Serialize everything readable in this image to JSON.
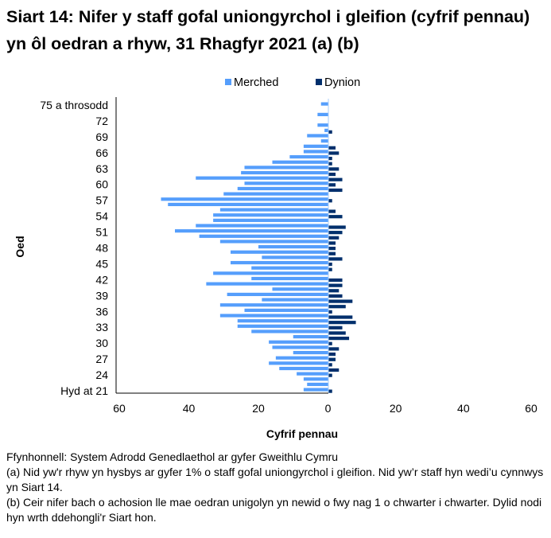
{
  "title": "Siart 14: Nifer y staff gofal uniongyrchol i gleifion (cyfrif pennau) yn ôl oedran a rhyw, 31 Rhagfyr 2021 (a) (b)",
  "colors": {
    "merched": "#559EFC",
    "dynion": "#002F6C",
    "zero_line": "#A8CCF8"
  },
  "chart_data": {
    "type": "bar",
    "orientation": "horizontal-population-pyramid",
    "title": "Siart 14: Nifer y staff gofal uniongyrchol i gleifion (cyfrif pennau) yn ôl oedran a rhyw, 31 Rhagfyr 2021 (a) (b)",
    "xlabel": "Cyfrif pennau",
    "ylabel": "Oed",
    "xlim": [
      -60,
      60
    ],
    "xtick_labels": [
      "60",
      "40",
      "20",
      "0",
      "20",
      "40",
      "60"
    ],
    "xtick_values": [
      -60,
      -40,
      -20,
      0,
      20,
      40,
      60
    ],
    "legend_position": "top",
    "grid": false,
    "categories": [
      "Hyd at 21",
      "22",
      "23",
      "24",
      "25",
      "26",
      "27",
      "28",
      "29",
      "30",
      "31",
      "32",
      "33",
      "34",
      "35",
      "36",
      "37",
      "38",
      "39",
      "40",
      "41",
      "42",
      "43",
      "44",
      "45",
      "46",
      "47",
      "48",
      "49",
      "50",
      "51",
      "52",
      "53",
      "54",
      "55",
      "56",
      "57",
      "58",
      "59",
      "60",
      "61",
      "62",
      "63",
      "64",
      "65",
      "66",
      "67",
      "68",
      "69",
      "70",
      "71",
      "72",
      "73",
      "74",
      "75 a throsodd"
    ],
    "ytick_labels": [
      "Hyd at 21",
      "24",
      "27",
      "30",
      "33",
      "36",
      "39",
      "42",
      "45",
      "48",
      "51",
      "54",
      "57",
      "60",
      "63",
      "66",
      "69",
      "72",
      "75 a throsodd"
    ],
    "series": [
      {
        "name": "Merched",
        "side": "left",
        "values": [
          7,
          6,
          7,
          9,
          14,
          17,
          15,
          10,
          16,
          17,
          10,
          22,
          26,
          26,
          31,
          24,
          31,
          19,
          29,
          16,
          35,
          22,
          33,
          22,
          28,
          19,
          28,
          20,
          31,
          37,
          44,
          38,
          33,
          33,
          31,
          46,
          48,
          30,
          26,
          24,
          38,
          25,
          24,
          16,
          11,
          7,
          7,
          2,
          6,
          1,
          3,
          0,
          3,
          0,
          2
        ]
      },
      {
        "name": "Dynion",
        "side": "right",
        "values": [
          1,
          0,
          0,
          1,
          3,
          1,
          2,
          2,
          3,
          1,
          6,
          5,
          4,
          8,
          7,
          1,
          5,
          7,
          4,
          3,
          4,
          4,
          0,
          1,
          1,
          4,
          2,
          2,
          2,
          3,
          4,
          5,
          0,
          4,
          2,
          0,
          1,
          0,
          4,
          2,
          4,
          2,
          3,
          1,
          1,
          3,
          2,
          0,
          0,
          1,
          0,
          0,
          0,
          0,
          0
        ]
      }
    ]
  },
  "notes": {
    "source": "Ffynhonnell: System Adrodd Genedlaethol ar gyfer Gweithlu Cymru",
    "a": "(a) Nid yw'r rhyw yn hysbys ar gyfer 1% o staff gofal uniongyrchol i gleifion. Nid yw’r staff hyn wedi’u cynnwys yn Siart 14.",
    "b": "(b) Ceir nifer bach o achosion lle mae oedran unigolyn yn newid o fwy nag 1 o chwarter i chwarter. Dylid nodi hyn wrth ddehongli'r Siart hon."
  }
}
